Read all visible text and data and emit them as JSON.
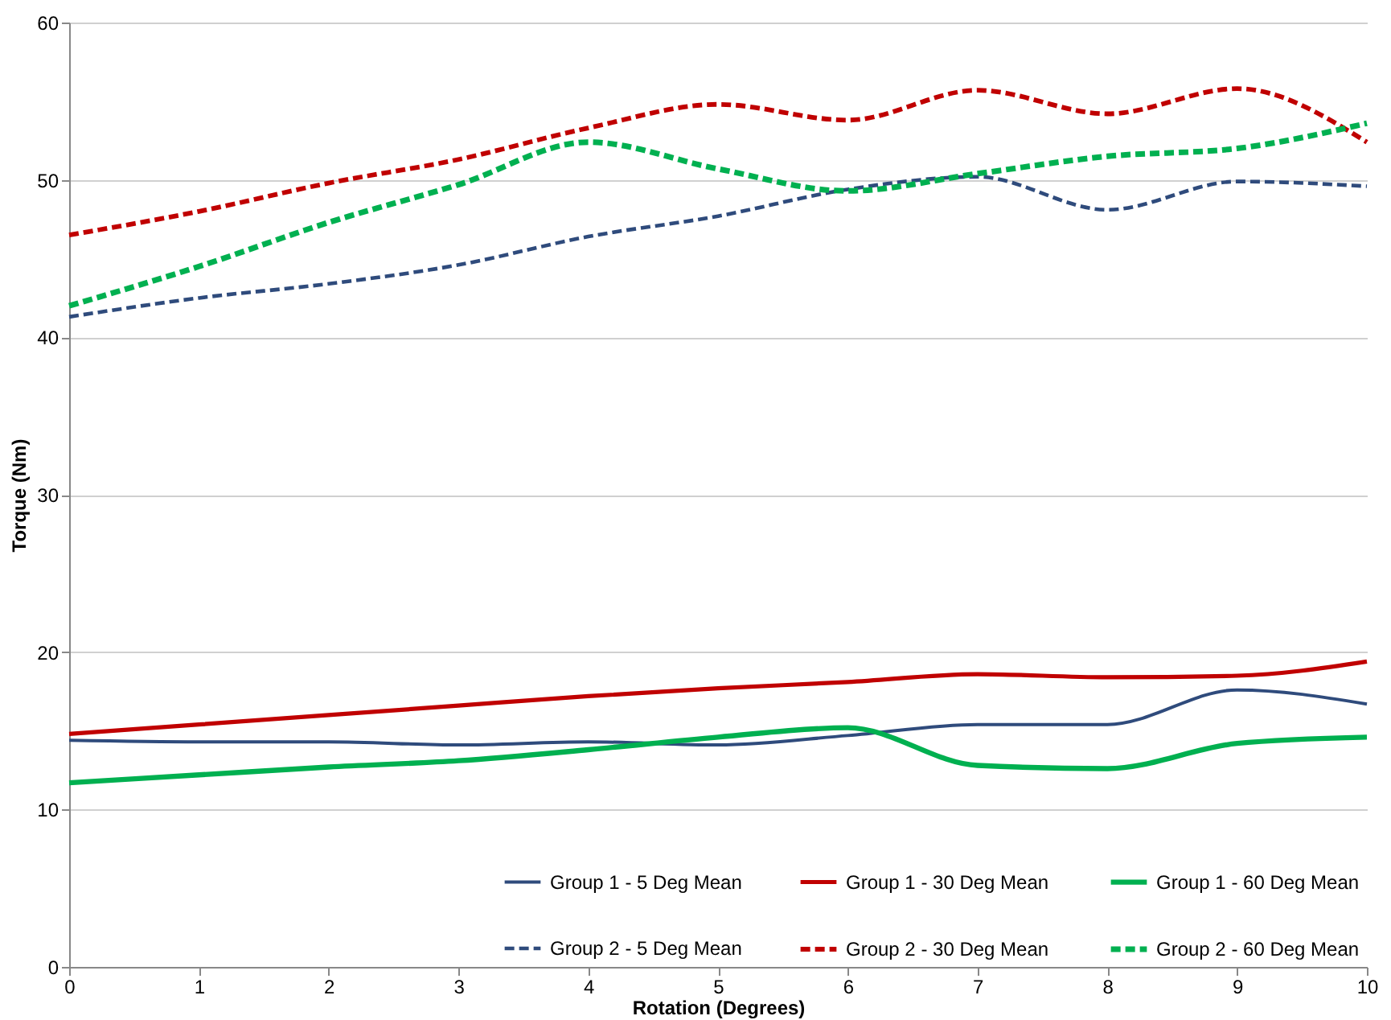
{
  "chart_data": {
    "type": "line",
    "xlabel": "Rotation (Degrees)",
    "ylabel": "Torque (Nm)",
    "x": [
      0,
      1,
      2,
      3,
      4,
      5,
      6,
      7,
      8,
      9,
      10
    ],
    "xlim": [
      0,
      10
    ],
    "xticks": [
      0,
      1,
      2,
      3,
      4,
      5,
      6,
      7,
      8,
      9,
      10
    ],
    "ylim": [
      0,
      60
    ],
    "yticks": [
      0,
      10,
      20,
      30,
      40,
      50,
      60
    ],
    "grid": "y",
    "legend": "bottom right",
    "series": [
      {
        "name": "Group 1 - 5 Deg Mean",
        "color": "#2f4b7c",
        "line_style": "solid",
        "values": [
          14.4,
          14.3,
          14.3,
          14.1,
          14.3,
          14.1,
          14.7,
          15.4,
          15.4,
          17.6,
          16.7
        ]
      },
      {
        "name": "Group 1 - 30 Deg Mean",
        "color": "#c00000",
        "line_style": "solid",
        "values": [
          14.8,
          15.4,
          16.0,
          16.6,
          17.2,
          17.7,
          18.1,
          18.6,
          18.4,
          18.5,
          19.4
        ]
      },
      {
        "name": "Group 1 - 60 Deg Mean",
        "color": "#00b050",
        "line_style": "solid",
        "values": [
          11.7,
          12.2,
          12.7,
          13.1,
          13.8,
          14.6,
          15.2,
          12.8,
          12.6,
          14.2,
          14.6
        ]
      },
      {
        "name": "Group 2 - 5 Deg Mean",
        "color": "#2f4b7c",
        "line_style": "dashed",
        "values": [
          41.3,
          42.5,
          43.4,
          44.6,
          46.4,
          47.7,
          49.4,
          50.2,
          48.1,
          49.9,
          49.6
        ]
      },
      {
        "name": "Group 2 - 30 Deg Mean",
        "color": "#c00000",
        "line_style": "dashed",
        "values": [
          46.5,
          48.0,
          49.8,
          51.3,
          53.3,
          54.8,
          53.8,
          55.7,
          54.2,
          55.8,
          52.4
        ]
      },
      {
        "name": "Group 2 - 60 Deg Mean",
        "color": "#00b050",
        "line_style": "dashed",
        "values": [
          42.0,
          44.5,
          47.3,
          49.7,
          52.4,
          50.7,
          49.3,
          50.4,
          51.5,
          52.0,
          53.6
        ]
      }
    ]
  }
}
